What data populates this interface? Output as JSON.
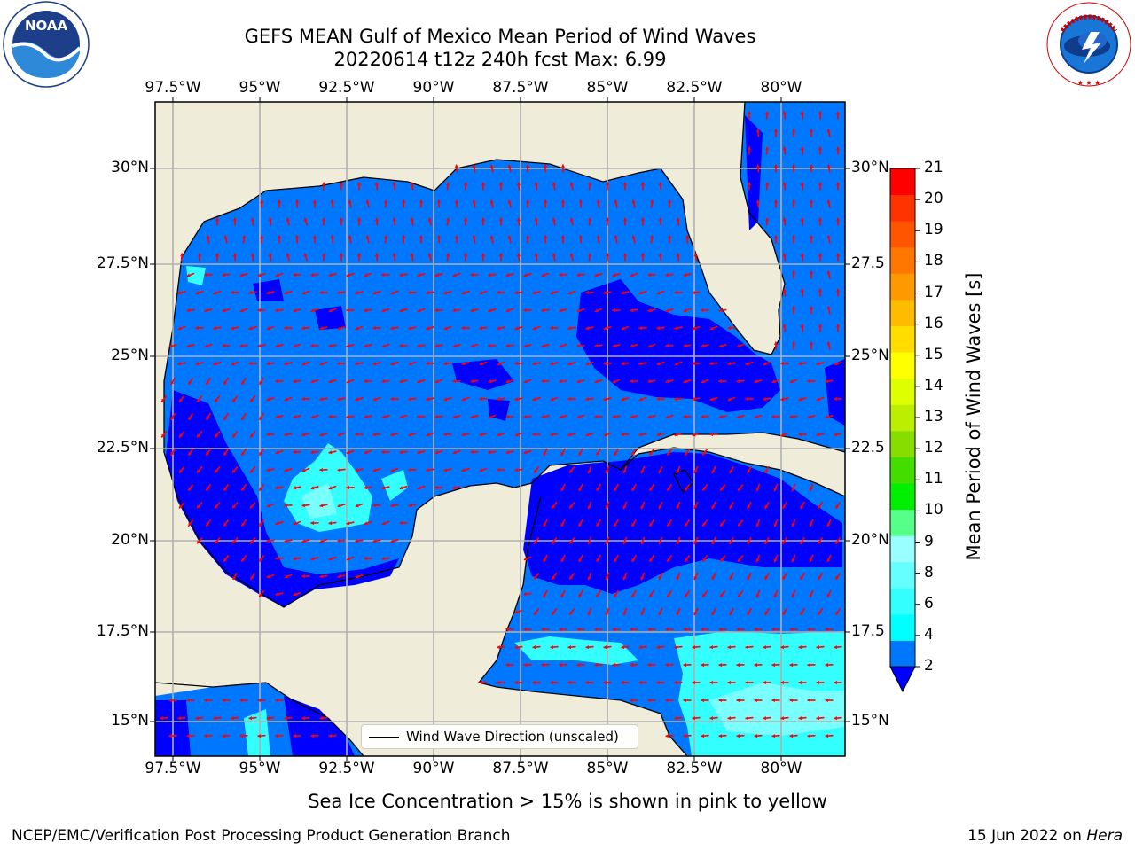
{
  "header": {
    "title_line1": "GEFS MEAN Gulf of Mexico Mean Period of Wind Waves",
    "title_line2": "20220614 t12z 240h fcst   Max: 6.99"
  },
  "logos": {
    "left": {
      "name": "noaa-logo",
      "text": "NOAA",
      "ring_text": "NATIONAL OCEANIC AND ATMOSPHERIC ADMINISTRATION · U.S. DEPARTMENT OF COMMERCE"
    },
    "right": {
      "name": "nws-logo",
      "ring_text": "NATIONAL WEATHER SERVICE"
    }
  },
  "map": {
    "lon_labels": [
      "97.5°W",
      "95°W",
      "92.5°W",
      "90°W",
      "87.5°W",
      "85°W",
      "82.5°W",
      "80°W"
    ],
    "lat_labels": [
      "30°N",
      "27.5°N",
      "25°N",
      "22.5°N",
      "20°N",
      "17.5°N",
      "15°N"
    ],
    "lat_labels_right": [
      "30°N",
      "27.5",
      "25°N",
      "22.5",
      "20°N",
      "17.5",
      "15°N"
    ],
    "colors": {
      "land": "#efedda",
      "ocean_base": "#0077ff",
      "ocean_dark": "#0000ff",
      "ocean_cyan": "#33ffff",
      "arrow": "#ff0000",
      "grid": "#b0b0b0",
      "coast": "#000000"
    },
    "legend_label": "Wind Wave Direction (unscaled)"
  },
  "colorbar": {
    "title": "Mean Period of Wind Waves [s]",
    "tick_labels": [
      "21",
      "20",
      "19",
      "18",
      "17",
      "16",
      "15",
      "14",
      "13",
      "12",
      "11",
      "10",
      "9",
      "8",
      "6",
      "4",
      "2"
    ],
    "colors_bottom_to_top": [
      "#0077ff",
      "#00ffff",
      "#33ffff",
      "#66ffff",
      "#99ffff",
      "#55ff88",
      "#00ee00",
      "#44dd00",
      "#88dd00",
      "#bbee00",
      "#ddff00",
      "#ffff00",
      "#ffdd00",
      "#ffbb00",
      "#ff9900",
      "#ff7700",
      "#ff5500",
      "#ff3300",
      "#ff0000"
    ],
    "extend_color": "#0000ff"
  },
  "footer": {
    "ice_note": "Sea Ice Concentration > 15% is shown in pink to yellow",
    "left": "NCEP/EMC/Verification Post Processing Product Generation Branch",
    "date": "15 Jun 2022 on ",
    "host": "Hera"
  }
}
